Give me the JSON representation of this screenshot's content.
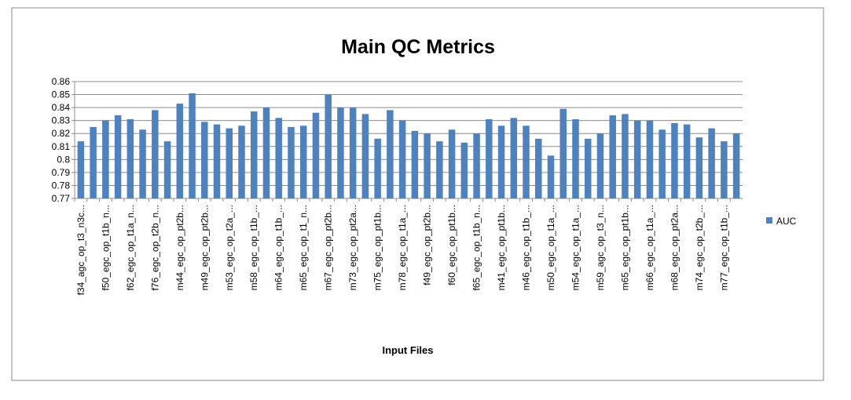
{
  "chart_data": {
    "type": "bar",
    "title": "Main QC Metrics",
    "x_label": "Input Files",
    "categories": [
      "f34_agc_op_t3_n3c...",
      null,
      "f50_egc_op_t1b_n...",
      null,
      "f62_egc_op_t1a_n...",
      null,
      "f76_egc_op_t2b_n...",
      null,
      "m44_egc_op_pt2b...",
      null,
      "m49_egc_op_pt2b...",
      null,
      "m53_egc_op_t2a_...",
      null,
      "m58_egc_op_t1b_...",
      null,
      "m64_egc_op_t1b_...",
      null,
      "m65_egc_op_t1_n...",
      null,
      "m67_egc_op_pt2b...",
      null,
      "m73_egc_op_pt2a...",
      null,
      "m75_egc_op_pt1b...",
      null,
      "m78_egc_op_t1a_...",
      null,
      "f49_egc_op_pt2b...",
      null,
      "f60_egc_op_pt1b...",
      null,
      "f65_egc_op_t1b_n...",
      null,
      "m41_egc_op_pt1b...",
      null,
      "m46_egc_op_t1b_...",
      null,
      "m50_egc_op_t1a_...",
      null,
      "m54_egc_op_t1a_...",
      null,
      "m59_agc_op_t3_n...",
      null,
      "m65_egc_op_pt1b...",
      null,
      "m66_egc_op_t1a_...",
      null,
      "m68_egc_op_pt2a...",
      null,
      "m74_egc_op_t2b_...",
      null,
      "m77_egc_op_t1b_...",
      null
    ],
    "series": [
      {
        "name": "AUC",
        "color": "#4f81bd",
        "values": [
          0.814,
          0.825,
          0.83,
          0.834,
          0.831,
          0.823,
          0.838,
          0.814,
          0.843,
          0.851,
          0.829,
          0.827,
          0.824,
          0.826,
          0.837,
          0.84,
          0.832,
          0.825,
          0.826,
          0.836,
          0.85,
          0.84,
          0.84,
          0.835,
          0.816,
          0.838,
          0.83,
          0.822,
          0.82,
          0.814,
          0.823,
          0.813,
          0.82,
          0.831,
          0.826,
          0.832,
          0.826,
          0.816,
          0.803,
          0.839,
          0.831,
          0.816,
          0.82,
          0.834,
          0.835,
          0.83,
          0.83,
          0.823,
          0.828,
          0.827,
          0.817,
          0.824,
          0.814,
          0.82
        ]
      }
    ],
    "ylim": [
      0.77,
      0.86
    ],
    "yticks": [
      0.77,
      0.78,
      0.79,
      0.8,
      0.81,
      0.82,
      0.83,
      0.84,
      0.85,
      0.86
    ],
    "grid": true,
    "legend": "right"
  }
}
